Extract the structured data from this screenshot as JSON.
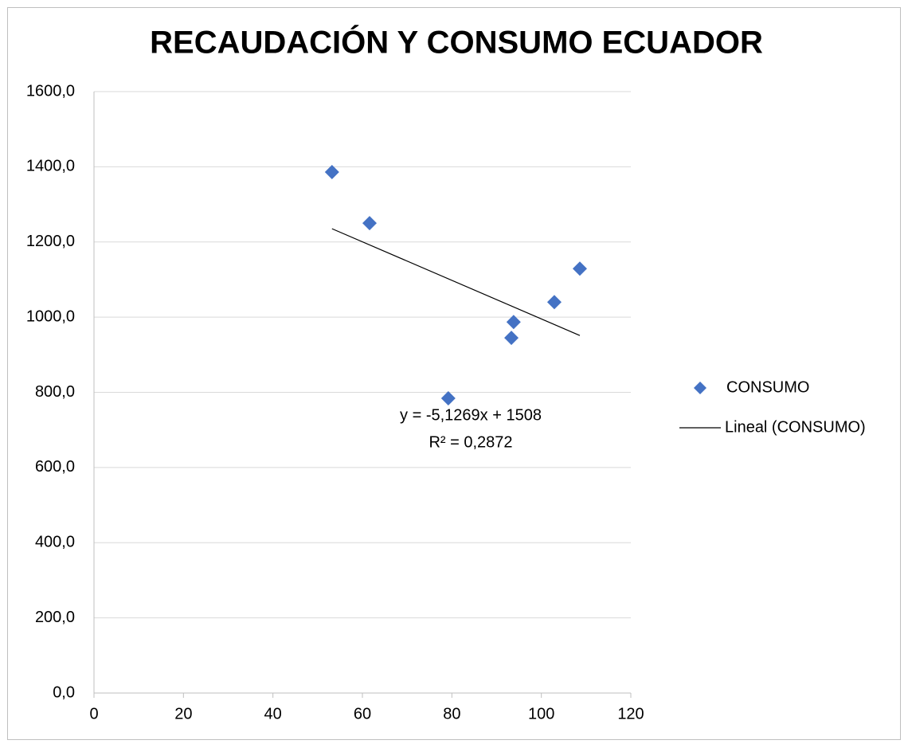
{
  "chart_data": {
    "type": "scatter",
    "title": "RECAUDACIÓN Y CONSUMO ECUADOR",
    "series": [
      {
        "name": "CONSUMO",
        "color": "#4472c4",
        "x": [
          53.2,
          61.6,
          79.2,
          93.3,
          93.8,
          102.9,
          108.6
        ],
        "values": [
          1386,
          1250,
          784,
          945,
          987,
          1040,
          1129
        ]
      }
    ],
    "trendline": {
      "name": "Lineal (CONSUMO)",
      "equation": "y = -5,1269x + 1508",
      "r_squared": "R² = 0,2872",
      "slope": -5.1269,
      "intercept": 1508,
      "color": "#000000"
    },
    "xlim": [
      0,
      120
    ],
    "xticks": [
      0,
      20,
      40,
      60,
      80,
      100,
      120
    ],
    "ylim": [
      0,
      1600
    ],
    "yticks": [
      {
        "value": 0,
        "label": "0,0"
      },
      {
        "value": 200,
        "label": "200,0"
      },
      {
        "value": 400,
        "label": "400,0"
      },
      {
        "value": 600,
        "label": "600,0"
      },
      {
        "value": 800,
        "label": "800,0"
      },
      {
        "value": 1000,
        "label": "1000,0"
      },
      {
        "value": 1200,
        "label": "1200,0"
      },
      {
        "value": 1400,
        "label": "1400,0"
      },
      {
        "value": 1600,
        "label": "1600,0"
      }
    ],
    "grid": true,
    "legend": "right"
  }
}
